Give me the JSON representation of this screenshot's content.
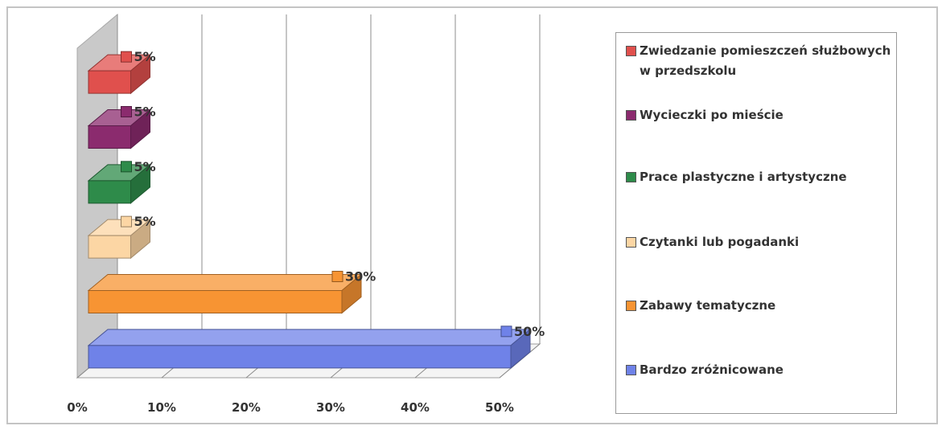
{
  "chart_data": {
    "type": "bar",
    "orientation": "horizontal",
    "style": "3d",
    "categories": [
      "Zwiedzanie pomieszczeń służbowych w przedszkolu",
      "Wycieczki po mieście",
      "Prace plastyczne i artystyczne",
      "Czytanki lub pogadanki",
      "Zabawy tematyczne",
      "Bardzo zróżnicowane"
    ],
    "values": [
      5,
      5,
      5,
      5,
      30,
      50
    ],
    "value_labels": [
      "5%",
      "5%",
      "5%",
      "5%",
      "30%",
      "50%"
    ],
    "colors": [
      "#e0504d",
      "#8b2b6e",
      "#2e8b4a",
      "#fcd6a4",
      "#f79433",
      "#6f82e8"
    ],
    "x_ticks": [
      "0%",
      "10%",
      "20%",
      "30%",
      "40%",
      "50%"
    ],
    "xlim": [
      0,
      50
    ],
    "grid": true,
    "legend_position": "right"
  },
  "legend": {
    "items": [
      {
        "label": "Zwiedzanie pomieszczeń służbowych w przedszkolu",
        "color": "#e0504d"
      },
      {
        "label": "Wycieczki po mieście",
        "color": "#8b2b6e"
      },
      {
        "label": "Prace plastyczne i artystyczne",
        "color": "#2e8b4a"
      },
      {
        "label": "Czytanki lub pogadanki",
        "color": "#fcd6a4"
      },
      {
        "label": "Zabawy tematyczne",
        "color": "#f79433"
      },
      {
        "label": "Bardzo zróżnicowane",
        "color": "#6f82e8"
      }
    ]
  }
}
